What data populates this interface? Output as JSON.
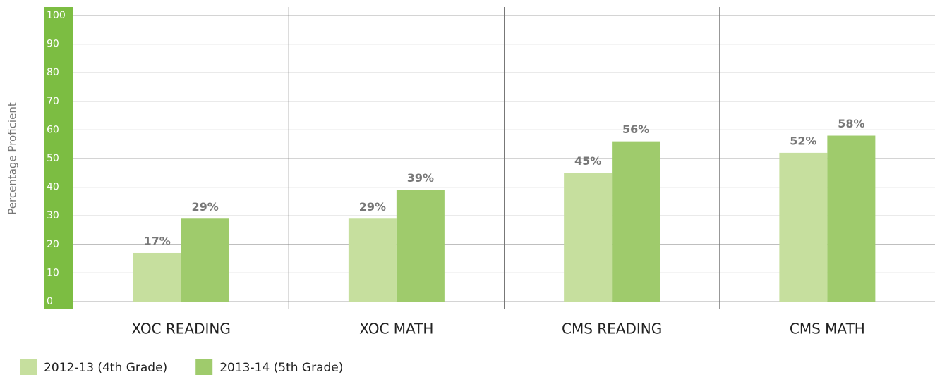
{
  "chart_data": {
    "type": "bar",
    "y_axis_label": "Percentage Proficient",
    "categories": [
      "XOC READING",
      "XOC MATH",
      "CMS READING",
      "CMS MATH"
    ],
    "series": [
      {
        "name": "2012-13 (4th Grade)",
        "color": "#c6df9e",
        "values": [
          17,
          29,
          45,
          52
        ],
        "value_labels": [
          "17%",
          "29%",
          "45%",
          "52%"
        ]
      },
      {
        "name": "2013-14 (5th Grade)",
        "color": "#9fcb6c",
        "values": [
          29,
          39,
          56,
          58
        ],
        "value_labels": [
          "29%",
          "39%",
          "56%",
          "58%"
        ]
      }
    ],
    "ylim": [
      0,
      100
    ],
    "yticks": [
      0,
      10,
      20,
      30,
      40,
      50,
      60,
      70,
      80,
      90,
      100
    ],
    "grid": true,
    "legend": "bottom"
  }
}
